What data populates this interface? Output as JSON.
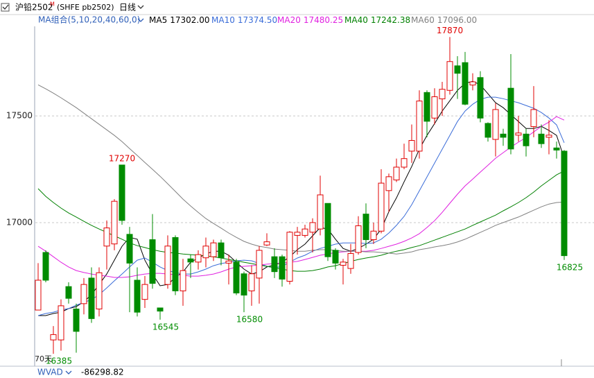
{
  "header": {
    "symbol": "沪铅2502",
    "symbol_flag": "M",
    "code": "(SHFE pb2502)",
    "period": "日线"
  },
  "chart_data": {
    "type": "candlestick",
    "indicator_label": "MA组合(5,10,20,40,60,0)",
    "range_label": "70天",
    "up_color": "#e00000",
    "down_color": "#008c00",
    "ylim": [
      16330,
      17920
    ],
    "yticks": [
      17000,
      17500
    ],
    "grid": true,
    "open": [
      16590,
      16860,
      16450,
      16450,
      16700,
      16595,
      16620,
      16740,
      16595,
      16890,
      16900,
      17270,
      16945,
      16730,
      16640,
      16920,
      16600,
      16710,
      16930,
      16680,
      16830,
      16815,
      16835,
      16840,
      16905,
      16810,
      16815,
      16760,
      16680,
      16740,
      16895,
      16840,
      16840,
      16725,
      16940,
      16940,
      16955,
      16970,
      17090,
      16870,
      16800,
      16785,
      16860,
      17040,
      16920,
      16960,
      17150,
      17200,
      17260,
      17335,
      17335,
      17610,
      17490,
      17580,
      17620,
      17735,
      17750,
      17645,
      17680,
      17465,
      17390,
      17415,
      17630,
      17410,
      17415,
      17450,
      17415,
      17400,
      17350,
      17335
    ],
    "high": [
      16810,
      16870,
      16515,
      16640,
      16720,
      16620,
      16740,
      16790,
      16790,
      17010,
      17110,
      17270,
      16980,
      16790,
      16750,
      17040,
      16600,
      16940,
      16940,
      16830,
      16850,
      16870,
      16930,
      16920,
      16920,
      16850,
      16830,
      16770,
      16800,
      16890,
      16950,
      16880,
      16850,
      16960,
      16980,
      16990,
      17020,
      17220,
      17090,
      16880,
      16830,
      16900,
      17030,
      17090,
      17000,
      17250,
      17230,
      17300,
      17370,
      17460,
      17620,
      17620,
      17630,
      17660,
      17870,
      17780,
      17800,
      17700,
      17710,
      17470,
      17560,
      17440,
      17790,
      17500,
      17440,
      17640,
      17460,
      17480,
      17380,
      17340
    ],
    "low": [
      16590,
      16720,
      16385,
      16400,
      16620,
      16390,
      16570,
      16530,
      16560,
      16780,
      16870,
      16990,
      16580,
      16560,
      16600,
      16690,
      16545,
      16690,
      16660,
      16610,
      16740,
      16780,
      16790,
      16820,
      16800,
      16710,
      16660,
      16580,
      16610,
      16620,
      16890,
      16740,
      16700,
      16710,
      16850,
      16930,
      16860,
      16940,
      16820,
      16780,
      16710,
      16760,
      16850,
      16880,
      16900,
      16950,
      17050,
      17190,
      17250,
      17280,
      17300,
      17400,
      17460,
      17500,
      17600,
      17580,
      17550,
      17620,
      17470,
      17380,
      17310,
      17360,
      17320,
      17380,
      17310,
      17400,
      17350,
      17320,
      17300,
      16825
    ],
    "close": [
      16730,
      16730,
      16475,
      16610,
      16645,
      16490,
      16710,
      16550,
      16765,
      16975,
      17100,
      17010,
      16810,
      16580,
      16710,
      16715,
      16585,
      16890,
      16680,
      16775,
      16815,
      16850,
      16890,
      16905,
      16835,
      16820,
      16670,
      16660,
      16760,
      16870,
      16910,
      16770,
      16735,
      16955,
      16955,
      16970,
      17000,
      17130,
      16840,
      16810,
      16815,
      16855,
      16985,
      16920,
      16960,
      17185,
      17215,
      17260,
      17300,
      17385,
      17570,
      17475,
      17590,
      17625,
      17755,
      17700,
      17555,
      17660,
      17490,
      17400,
      17530,
      17400,
      17345,
      17420,
      17360,
      17530,
      17370,
      17410,
      17340,
      16845
    ],
    "series": [
      {
        "name": "MA5",
        "color": "#000000",
        "last_label": "17302.00",
        "values": [
          16564,
          16564,
          16574,
          16580,
          16597,
          16606,
          16629,
          16662,
          16710,
          16759,
          16824,
          16889,
          16931,
          16922,
          16824,
          16759,
          16704,
          16710,
          16743,
          16769,
          16814,
          16834,
          16853,
          16866,
          16866,
          16847,
          16814,
          16782,
          16759,
          16769,
          16792,
          16801,
          16814,
          16840,
          16873,
          16899,
          16938,
          16977,
          16970,
          16922,
          16879,
          16866,
          16879,
          16899,
          16922,
          16970,
          17051,
          17116,
          17191,
          17263,
          17344,
          17409,
          17464,
          17523,
          17571,
          17620,
          17653,
          17662,
          17646,
          17604,
          17562,
          17539,
          17506,
          17474,
          17441,
          17441,
          17451,
          17432,
          17409,
          17302
        ]
      },
      {
        "name": "MA10",
        "color": "#3a6cd8",
        "last_label": "17374.50",
        "values": [
          16564,
          16574,
          16580,
          16590,
          16597,
          16613,
          16626,
          16639,
          16662,
          16694,
          16727,
          16759,
          16792,
          16824,
          16834,
          16814,
          16792,
          16775,
          16766,
          16759,
          16759,
          16769,
          16782,
          16798,
          16808,
          16814,
          16821,
          16824,
          16821,
          16808,
          16795,
          16788,
          16795,
          16814,
          16834,
          16847,
          16866,
          16879,
          16889,
          16899,
          16905,
          16905,
          16905,
          16902,
          16905,
          16922,
          16951,
          16987,
          17029,
          17084,
          17149,
          17214,
          17279,
          17344,
          17409,
          17474,
          17523,
          17555,
          17578,
          17588,
          17588,
          17581,
          17571,
          17562,
          17549,
          17536,
          17516,
          17490,
          17458,
          17374.5
        ]
      },
      {
        "name": "MA20",
        "color": "#e020e0",
        "last_label": "17480.25",
        "values": [
          16889,
          16866,
          16840,
          16814,
          16792,
          16775,
          16766,
          16759,
          16753,
          16749,
          16743,
          16743,
          16746,
          16753,
          16759,
          16762,
          16762,
          16759,
          16756,
          16753,
          16749,
          16749,
          16753,
          16759,
          16769,
          16782,
          16792,
          16795,
          16798,
          16801,
          16805,
          16808,
          16811,
          16814,
          16818,
          16827,
          16837,
          16847,
          16853,
          16860,
          16863,
          16866,
          16866,
          16866,
          16870,
          16879,
          16889,
          16899,
          16912,
          16928,
          16948,
          16977,
          17009,
          17048,
          17091,
          17133,
          17172,
          17204,
          17237,
          17269,
          17302,
          17328,
          17354,
          17377,
          17399,
          17425,
          17451,
          17471,
          17497,
          17480.25
        ]
      },
      {
        "name": "MA40",
        "color": "#008000",
        "last_label": "17242.38",
        "values": [
          17159,
          17123,
          17094,
          17068,
          17045,
          17026,
          17006,
          16987,
          16970,
          16954,
          16938,
          16922,
          16905,
          16892,
          16883,
          16873,
          16866,
          16860,
          16857,
          16853,
          16850,
          16847,
          16844,
          16840,
          16834,
          16827,
          16821,
          16814,
          16808,
          16801,
          16795,
          16788,
          16782,
          16775,
          16772,
          16772,
          16775,
          16782,
          16792,
          16798,
          16808,
          16818,
          16827,
          16834,
          16840,
          16847,
          16857,
          16866,
          16873,
          16883,
          16892,
          16905,
          16918,
          16931,
          16944,
          16957,
          16970,
          16987,
          17003,
          17019,
          17035,
          17055,
          17074,
          17094,
          17117,
          17143,
          17172,
          17198,
          17224,
          17242.38
        ]
      },
      {
        "name": "MA60",
        "color": "#808080",
        "last_label": "17096.00",
        "values": [
          17646,
          17627,
          17607,
          17585,
          17562,
          17539,
          17513,
          17487,
          17461,
          17435,
          17409,
          17380,
          17347,
          17315,
          17282,
          17250,
          17217,
          17182,
          17146,
          17110,
          17078,
          17048,
          17019,
          16996,
          16974,
          16951,
          16931,
          16912,
          16899,
          16889,
          16883,
          16876,
          16873,
          16870,
          16866,
          16866,
          16870,
          16873,
          16873,
          16870,
          16866,
          16866,
          16866,
          16863,
          16863,
          16860,
          16857,
          16853,
          16857,
          16863,
          16873,
          16879,
          16886,
          16892,
          16899,
          16909,
          16922,
          16938,
          16954,
          16970,
          16987,
          17000,
          17013,
          17026,
          17042,
          17058,
          17074,
          17087,
          17094,
          17096
        ]
      }
    ]
  },
  "sub_panel": {
    "name": "WVAD",
    "value": -86298.82
  }
}
